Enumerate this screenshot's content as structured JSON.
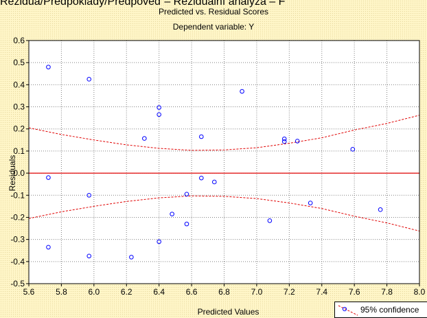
{
  "page": {
    "top_caption": "Rezidua/Předpoklady/Předpověď – Reziduální analýza – F"
  },
  "chart_data": {
    "type": "scatter",
    "title": "Predicted vs. Residual Scores",
    "subtitle": "Dependent variable: Y",
    "xlabel": "Predicted Values",
    "ylabel": "Residuals",
    "xlim": [
      5.6,
      8.0
    ],
    "ylim": [
      -0.5,
      0.6
    ],
    "x_ticks": [
      "5.6",
      "5.8",
      "6.0",
      "6.2",
      "6.4",
      "6.6",
      "6.8",
      "7.0",
      "7.2",
      "7.4",
      "7.6",
      "7.8",
      "8.0"
    ],
    "y_ticks": [
      "-0.5",
      "-0.4",
      "-0.3",
      "-0.2",
      "-0.1",
      "0.0",
      "0.1",
      "0.2",
      "0.3",
      "0.4",
      "0.5",
      "0.6"
    ],
    "grid": true,
    "legend_position": "bottom-right",
    "legend": [
      "95% confidence"
    ],
    "points": [
      {
        "x": 5.72,
        "y": 0.48
      },
      {
        "x": 5.72,
        "y": -0.02
      },
      {
        "x": 5.72,
        "y": -0.335
      },
      {
        "x": 5.97,
        "y": 0.425
      },
      {
        "x": 5.97,
        "y": -0.1
      },
      {
        "x": 5.97,
        "y": -0.375
      },
      {
        "x": 6.23,
        "y": -0.38
      },
      {
        "x": 6.31,
        "y": 0.157
      },
      {
        "x": 6.4,
        "y": 0.297
      },
      {
        "x": 6.4,
        "y": 0.265
      },
      {
        "x": 6.4,
        "y": -0.31
      },
      {
        "x": 6.48,
        "y": -0.185
      },
      {
        "x": 6.57,
        "y": -0.095
      },
      {
        "x": 6.57,
        "y": -0.23
      },
      {
        "x": 6.66,
        "y": 0.165
      },
      {
        "x": 6.66,
        "y": -0.022
      },
      {
        "x": 6.74,
        "y": -0.04
      },
      {
        "x": 6.91,
        "y": 0.37
      },
      {
        "x": 7.08,
        "y": -0.215
      },
      {
        "x": 7.17,
        "y": 0.155
      },
      {
        "x": 7.17,
        "y": 0.143
      },
      {
        "x": 7.25,
        "y": 0.145
      },
      {
        "x": 7.33,
        "y": -0.135
      },
      {
        "x": 7.59,
        "y": 0.108
      },
      {
        "x": 7.76,
        "y": -0.165
      }
    ],
    "reference_line": {
      "y": 0.0
    },
    "confidence_band": {
      "x": [
        5.6,
        5.8,
        6.0,
        6.2,
        6.4,
        6.6,
        6.8,
        7.0,
        7.2,
        7.4,
        7.6,
        7.8,
        8.0
      ],
      "upper": [
        0.205,
        0.175,
        0.15,
        0.128,
        0.112,
        0.103,
        0.105,
        0.115,
        0.135,
        0.16,
        0.195,
        0.225,
        0.262
      ],
      "lower": [
        -0.205,
        -0.175,
        -0.15,
        -0.128,
        -0.112,
        -0.103,
        -0.105,
        -0.115,
        -0.135,
        -0.16,
        -0.195,
        -0.225,
        -0.262
      ]
    },
    "colors": {
      "points": "#0000ff",
      "reference_line": "#e00000",
      "confidence_band": "#e00000",
      "grid": "#808080",
      "plot_background": "#ffffff"
    }
  }
}
